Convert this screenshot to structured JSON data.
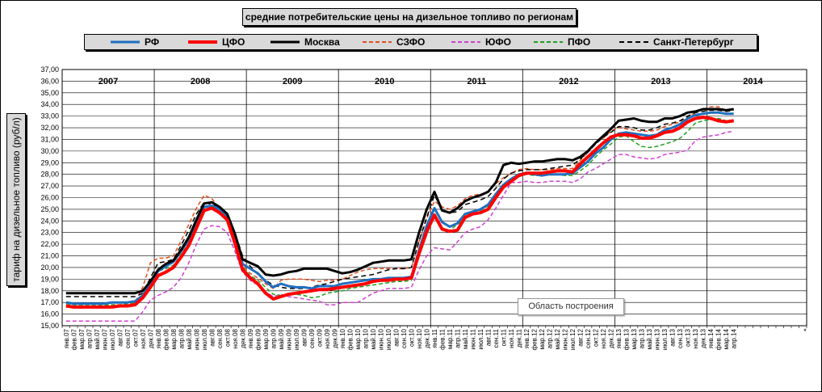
{
  "tooltip": "Область построения",
  "chart_data": {
    "type": "line",
    "title": "средние потребительские цены на дизельное топливо по регионам",
    "xlabel": "",
    "ylabel": "тариф на дизельное топливо (руб/л)",
    "ylim": [
      15,
      37
    ],
    "ytick_step": 1,
    "grid": true,
    "legend_position": "top",
    "year_labels": [
      "2007",
      "2008",
      "2009",
      "2010",
      "2011",
      "2012",
      "2013",
      "2014"
    ],
    "x": [
      "янв.07",
      "фев.07",
      "мар.07",
      "апр.07",
      "май.07",
      "июн.07",
      "июл.07",
      "авг.07",
      "сен.07",
      "окт.07",
      "ноя.07",
      "дек.07",
      "янв.08",
      "фев.08",
      "мар.08",
      "апр.08",
      "май.08",
      "июн.08",
      "июл.08",
      "авг.08",
      "сен.08",
      "окт.08",
      "ноя.08",
      "дек.08",
      "янв.09",
      "фев.09",
      "мар.09",
      "апр.09",
      "май.09",
      "июн.09",
      "июл.09",
      "авг.09",
      "сен.09",
      "окт.09",
      "ноя.09",
      "дек.09",
      "янв.10",
      "фев.10",
      "мар.10",
      "апр.10",
      "май.10",
      "июн.10",
      "июл.10",
      "авг.10",
      "сен.10",
      "окт.10",
      "ноя.10",
      "дек.10",
      "янв.11",
      "фев.11",
      "мар.11",
      "апр.11",
      "май.11",
      "июн.11",
      "июл.11",
      "авг.11",
      "сен.11",
      "окт.11",
      "ноя.11",
      "дек.11",
      "янв.12",
      "фев.12",
      "мар.12",
      "апр.12",
      "май.12",
      "июн.12",
      "июл.12",
      "авг.12",
      "сен.12",
      "окт.12",
      "ноя.12",
      "дек.12",
      "янв.13",
      "фев.13",
      "мар.13",
      "апр.13",
      "май.13",
      "июн.13",
      "июл.13",
      "авг.13",
      "сен.13",
      "окт.13",
      "ноя.13",
      "дек.13",
      "янв.14",
      "фев.14",
      "мар.14",
      "апр.14"
    ],
    "extra_tick_label": "*",
    "series": [
      {
        "name": "РФ",
        "color": "#1f6fbf",
        "width": 3,
        "dash": "",
        "values": [
          17.0,
          16.9,
          16.9,
          16.9,
          16.9,
          16.9,
          17.0,
          17.0,
          17.0,
          17.1,
          17.6,
          18.6,
          19.7,
          20.1,
          20.5,
          21.4,
          22.4,
          23.8,
          25.2,
          25.3,
          25.0,
          24.4,
          22.7,
          20.3,
          19.9,
          19.5,
          18.8,
          18.3,
          18.6,
          18.4,
          18.3,
          18.3,
          18.2,
          18.4,
          18.4,
          18.4,
          18.6,
          18.7,
          18.8,
          18.9,
          19.0,
          19.0,
          19.1,
          19.1,
          19.1,
          19.2,
          21.5,
          23.6,
          25.1,
          23.9,
          23.5,
          23.8,
          24.6,
          24.8,
          25.0,
          25.4,
          26.3,
          27.1,
          27.6,
          28.0,
          28.1,
          28.0,
          27.9,
          28.0,
          28.0,
          28.0,
          28.1,
          28.6,
          29.1,
          29.8,
          30.3,
          31.0,
          31.5,
          31.6,
          31.5,
          31.4,
          31.3,
          31.4,
          31.8,
          32.0,
          32.3,
          32.8,
          33.1,
          33.2,
          33.3,
          33.3,
          33.2,
          33.2
        ]
      },
      {
        "name": "ЦФО",
        "color": "#ff0000",
        "width": 4,
        "dash": "",
        "values": [
          16.7,
          16.6,
          16.6,
          16.6,
          16.6,
          16.6,
          16.6,
          16.7,
          16.7,
          16.8,
          17.4,
          18.3,
          19.3,
          19.6,
          20.0,
          20.9,
          21.9,
          23.4,
          24.9,
          25.1,
          24.7,
          24.1,
          22.1,
          19.8,
          19.1,
          18.6,
          17.8,
          17.3,
          17.5,
          17.7,
          17.8,
          17.9,
          18.0,
          18.1,
          18.1,
          18.2,
          18.3,
          18.4,
          18.5,
          18.6,
          18.8,
          18.9,
          18.9,
          19.0,
          19.0,
          19.1,
          21.2,
          23.1,
          24.5,
          23.3,
          23.1,
          23.2,
          24.3,
          24.6,
          24.7,
          25.0,
          26.0,
          26.9,
          27.4,
          27.9,
          28.1,
          28.1,
          28.1,
          28.2,
          28.3,
          28.3,
          28.2,
          28.9,
          29.5,
          30.1,
          30.7,
          31.2,
          31.4,
          31.4,
          31.3,
          31.1,
          31.1,
          31.3,
          31.6,
          31.7,
          32.0,
          32.5,
          32.8,
          32.9,
          32.8,
          32.6,
          32.5,
          32.6
        ]
      },
      {
        "name": "Москва",
        "color": "#000000",
        "width": 3,
        "dash": "",
        "values": [
          17.8,
          17.8,
          17.8,
          17.8,
          17.8,
          17.8,
          17.8,
          17.8,
          17.8,
          17.8,
          18.0,
          18.8,
          19.8,
          20.3,
          20.6,
          21.5,
          22.6,
          24.1,
          25.5,
          25.6,
          25.2,
          24.6,
          22.9,
          20.7,
          20.4,
          20.1,
          19.4,
          19.3,
          19.4,
          19.6,
          19.7,
          19.9,
          19.9,
          19.9,
          19.9,
          19.7,
          19.5,
          19.6,
          19.8,
          20.1,
          20.4,
          20.5,
          20.6,
          20.6,
          20.6,
          20.7,
          23.0,
          25.0,
          26.5,
          24.9,
          24.7,
          25.1,
          25.7,
          26.0,
          26.2,
          26.5,
          27.3,
          28.8,
          29.0,
          28.9,
          29.0,
          29.1,
          29.1,
          29.2,
          29.3,
          29.3,
          29.2,
          29.5,
          30.0,
          30.7,
          31.3,
          31.9,
          32.6,
          32.7,
          32.8,
          32.6,
          32.5,
          32.5,
          32.8,
          32.8,
          33.0,
          33.3,
          33.4,
          33.6,
          33.6,
          33.6,
          33.5,
          33.6
        ]
      },
      {
        "name": "СЗФО",
        "color": "#e05020",
        "width": 1.5,
        "dash": "5,3",
        "values": [
          16.7,
          16.6,
          16.5,
          16.6,
          16.7,
          16.7,
          16.8,
          16.8,
          16.8,
          17.0,
          18.3,
          20.4,
          20.8,
          20.8,
          21.0,
          22.3,
          23.7,
          25.1,
          26.2,
          25.9,
          25.1,
          24.3,
          22.4,
          20.1,
          19.5,
          19.1,
          18.6,
          18.2,
          18.9,
          19.0,
          19.0,
          19.0,
          18.9,
          18.8,
          18.9,
          18.9,
          19.0,
          19.3,
          19.6,
          19.8,
          19.9,
          19.9,
          19.9,
          19.9,
          19.9,
          20.0,
          22.2,
          24.2,
          25.7,
          25.2,
          25.0,
          25.3,
          25.9,
          26.2,
          26.3,
          26.5,
          27.2,
          27.7,
          28.1,
          28.4,
          28.5,
          28.4,
          28.4,
          28.4,
          28.5,
          28.5,
          28.5,
          29.2,
          29.9,
          30.7,
          31.1,
          31.7,
          32.0,
          31.9,
          31.8,
          31.7,
          31.7,
          31.8,
          32.1,
          32.3,
          32.5,
          32.9,
          33.3,
          33.6,
          33.8,
          33.8,
          33.5,
          33.5
        ]
      },
      {
        "name": "ЮФО",
        "color": "#d040d0",
        "width": 1.5,
        "dash": "5,3",
        "values": [
          15.4,
          15.4,
          15.4,
          15.4,
          15.4,
          15.4,
          15.4,
          15.4,
          15.4,
          15.4,
          16.2,
          17.2,
          17.6,
          17.9,
          18.3,
          19.1,
          20.4,
          22.0,
          23.3,
          23.6,
          23.5,
          23.0,
          21.4,
          19.6,
          18.9,
          18.5,
          17.9,
          17.5,
          17.7,
          17.5,
          17.4,
          17.3,
          17.2,
          17.1,
          16.8,
          16.8,
          17.0,
          17.0,
          17.0,
          17.4,
          17.8,
          18.0,
          18.2,
          18.2,
          18.2,
          18.3,
          19.8,
          21.0,
          21.7,
          21.6,
          21.5,
          22.2,
          23.0,
          23.3,
          23.5,
          24.1,
          25.1,
          26.2,
          27.3,
          27.3,
          27.4,
          27.3,
          27.3,
          27.4,
          27.4,
          27.4,
          27.3,
          27.6,
          28.2,
          28.5,
          28.9,
          29.3,
          29.7,
          29.7,
          29.5,
          29.4,
          29.3,
          29.4,
          29.7,
          29.8,
          29.9,
          30.1,
          30.9,
          31.2,
          31.3,
          31.4,
          31.6,
          31.7
        ]
      },
      {
        "name": "ПФО",
        "color": "#20a020",
        "width": 1.5,
        "dash": "5,3",
        "values": [
          16.9,
          16.8,
          16.8,
          16.8,
          16.8,
          16.8,
          16.8,
          16.8,
          16.9,
          17.0,
          17.6,
          18.9,
          19.7,
          19.9,
          20.2,
          21.1,
          22.1,
          23.4,
          24.8,
          25.1,
          24.7,
          24.0,
          22.2,
          20.0,
          19.3,
          18.9,
          18.3,
          17.7,
          17.6,
          17.7,
          17.7,
          17.6,
          17.4,
          17.5,
          17.8,
          17.9,
          18.0,
          18.2,
          18.3,
          18.4,
          18.5,
          18.6,
          18.7,
          18.8,
          18.8,
          18.9,
          21.0,
          22.8,
          24.5,
          23.3,
          23.2,
          23.7,
          24.2,
          24.7,
          24.9,
          25.3,
          26.1,
          26.9,
          27.5,
          27.8,
          28.0,
          27.9,
          27.9,
          28.0,
          28.0,
          27.9,
          27.9,
          28.3,
          28.8,
          29.5,
          30.1,
          30.6,
          31.2,
          31.3,
          30.8,
          30.4,
          30.3,
          30.4,
          30.6,
          30.8,
          31.1,
          31.7,
          32.4,
          32.6,
          32.7,
          32.8,
          32.6,
          32.6
        ]
      },
      {
        "name": "Санкт-Петербург",
        "color": "#000000",
        "width": 1.5,
        "dash": "6,4",
        "values": [
          17.5,
          17.5,
          17.5,
          17.5,
          17.5,
          17.5,
          17.5,
          17.5,
          17.5,
          17.5,
          17.8,
          19.1,
          20.4,
          20.5,
          20.7,
          21.9,
          23.2,
          24.6,
          25.6,
          25.4,
          25.2,
          24.6,
          23.0,
          21.0,
          20.1,
          19.4,
          18.9,
          18.5,
          18.3,
          18.2,
          18.2,
          18.2,
          18.3,
          18.5,
          18.6,
          18.8,
          19.0,
          19.1,
          19.2,
          19.3,
          19.4,
          19.6,
          19.8,
          19.9,
          19.9,
          20.0,
          22.3,
          24.3,
          26.2,
          25.0,
          24.7,
          24.8,
          25.4,
          25.6,
          25.8,
          26.1,
          26.8,
          27.6,
          28.1,
          28.3,
          28.4,
          28.4,
          28.4,
          28.5,
          28.6,
          28.7,
          28.8,
          29.3,
          29.9,
          30.6,
          31.2,
          31.6,
          32.1,
          32.1,
          32.0,
          31.8,
          31.8,
          32.0,
          32.3,
          32.4,
          32.6,
          33.0,
          33.3,
          33.4,
          33.5,
          33.5,
          33.4,
          33.5
        ]
      }
    ]
  }
}
